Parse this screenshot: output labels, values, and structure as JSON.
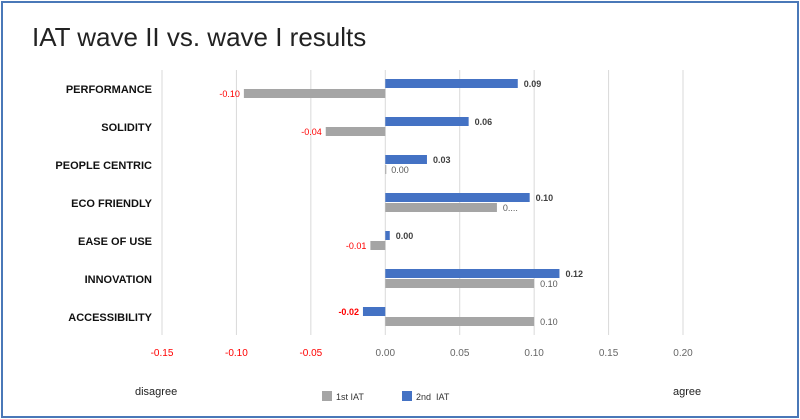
{
  "chart_data": {
    "type": "bar",
    "orientation": "horizontal",
    "title": "IAT wave II vs. wave I results",
    "categories": [
      "PERFORMANCE",
      "SOLIDITY",
      "PEOPLE CENTRIC",
      "ECO FRIENDLY",
      "EASE OF USE",
      "INNOVATION",
      "ACCESSIBILITY"
    ],
    "series": [
      {
        "name": "1st IAT",
        "color": "#a5a5a5",
        "values": [
          -0.095,
          -0.04,
          0.0,
          0.075,
          -0.01,
          0.1,
          0.1
        ],
        "labels": [
          "-0.10",
          "-0.04",
          "0.00",
          "0....",
          "-0.01",
          "0.10",
          "0.10"
        ]
      },
      {
        "name": "2nd  IAT",
        "color": "#4472c4",
        "values": [
          0.089,
          0.056,
          0.028,
          0.097,
          0.003,
          0.117,
          -0.015
        ],
        "labels": [
          "0.09",
          "0.06",
          "0.03",
          "0.10",
          "0.00",
          "0.12",
          "-0.02"
        ]
      }
    ],
    "xlim": [
      -0.15,
      0.2
    ],
    "xticks": [
      "-0.15",
      "-0.10",
      "-0.05",
      "0.00",
      "0.05",
      "0.10",
      "0.15",
      "0.20"
    ],
    "xtick_values": [
      -0.15,
      -0.1,
      -0.05,
      0.0,
      0.05,
      0.1,
      0.15,
      0.2
    ],
    "grid": true,
    "legend": "bottom-center",
    "annotations": {
      "left": "disagree",
      "right": "agree"
    },
    "negative_color": "#ff0000"
  }
}
